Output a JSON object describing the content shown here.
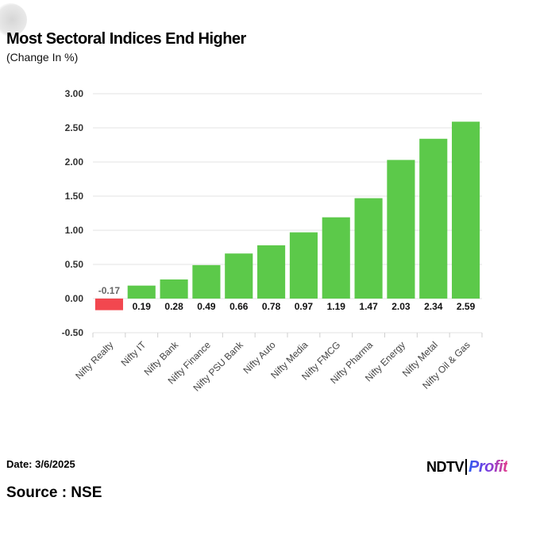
{
  "header": {
    "title": "Most Sectoral Indices End Higher",
    "subtitle": "(Change In %)"
  },
  "footer": {
    "date": "Date: 3/6/2025",
    "source": "Source : NSE",
    "logo_ndtv": "NDTV",
    "logo_profit": "Profit"
  },
  "colors": {
    "positive": "#5cc94a",
    "negative": "#f2474f",
    "grid": "#e3e3e3",
    "axis": "#cfcfcf"
  },
  "chart_data": {
    "type": "bar",
    "title": "Most Sectoral Indices End Higher",
    "subtitle": "(Change In %)",
    "xlabel": "",
    "ylabel": "",
    "categories": [
      "Nifty Realty",
      "Nifty IT",
      "Nifty Bank",
      "Nifty Finance",
      "Nifty PSU Bank",
      "Nifty Auto",
      "Nifty Media",
      "Nifty FMCG",
      "Nifty Pharma",
      "Nifty Energy",
      "Nifty Metal",
      "Nifty Oil & Gas"
    ],
    "values": [
      -0.17,
      0.19,
      0.28,
      0.49,
      0.66,
      0.78,
      0.97,
      1.19,
      1.47,
      2.03,
      2.34,
      2.59
    ],
    "data_labels": [
      "-0.17",
      "0.19",
      "0.28",
      "0.49",
      "0.66",
      "0.78",
      "0.97",
      "1.19",
      "1.47",
      "2.03",
      "2.34",
      "2.59"
    ],
    "ylim": [
      -0.5,
      3.0
    ],
    "yticks": [
      "3.00",
      "2.50",
      "2.00",
      "1.50",
      "1.00",
      "0.50",
      "0.00",
      "-0.50"
    ],
    "ytick_values": [
      3.0,
      2.5,
      2.0,
      1.5,
      1.0,
      0.5,
      0.0,
      -0.5
    ],
    "grid": true,
    "legend": "none"
  }
}
